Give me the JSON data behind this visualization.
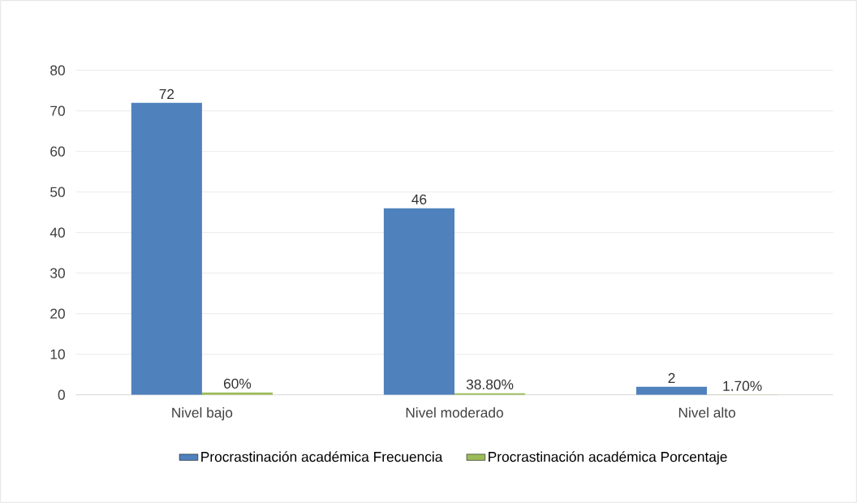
{
  "chart_data": {
    "type": "bar",
    "categories": [
      "Nivel bajo",
      "Nivel moderado",
      "Nivel alto"
    ],
    "series": [
      {
        "name": "Procrastinación académica Frecuencia",
        "color": "#4f81bd",
        "values": [
          72,
          46,
          2
        ],
        "value_labels": [
          "72",
          "46",
          "2"
        ]
      },
      {
        "name": "Procrastinación académica Porcentaje",
        "color": "#9bbb59",
        "values": [
          0.6,
          0.388,
          0.017
        ],
        "value_labels": [
          "60%",
          "38.80%",
          "1.70%"
        ]
      }
    ],
    "ylim": [
      0,
      80
    ],
    "yticks": [
      0,
      10,
      20,
      30,
      40,
      50,
      60,
      70,
      80
    ],
    "grid": "y",
    "legend": "bottom"
  }
}
